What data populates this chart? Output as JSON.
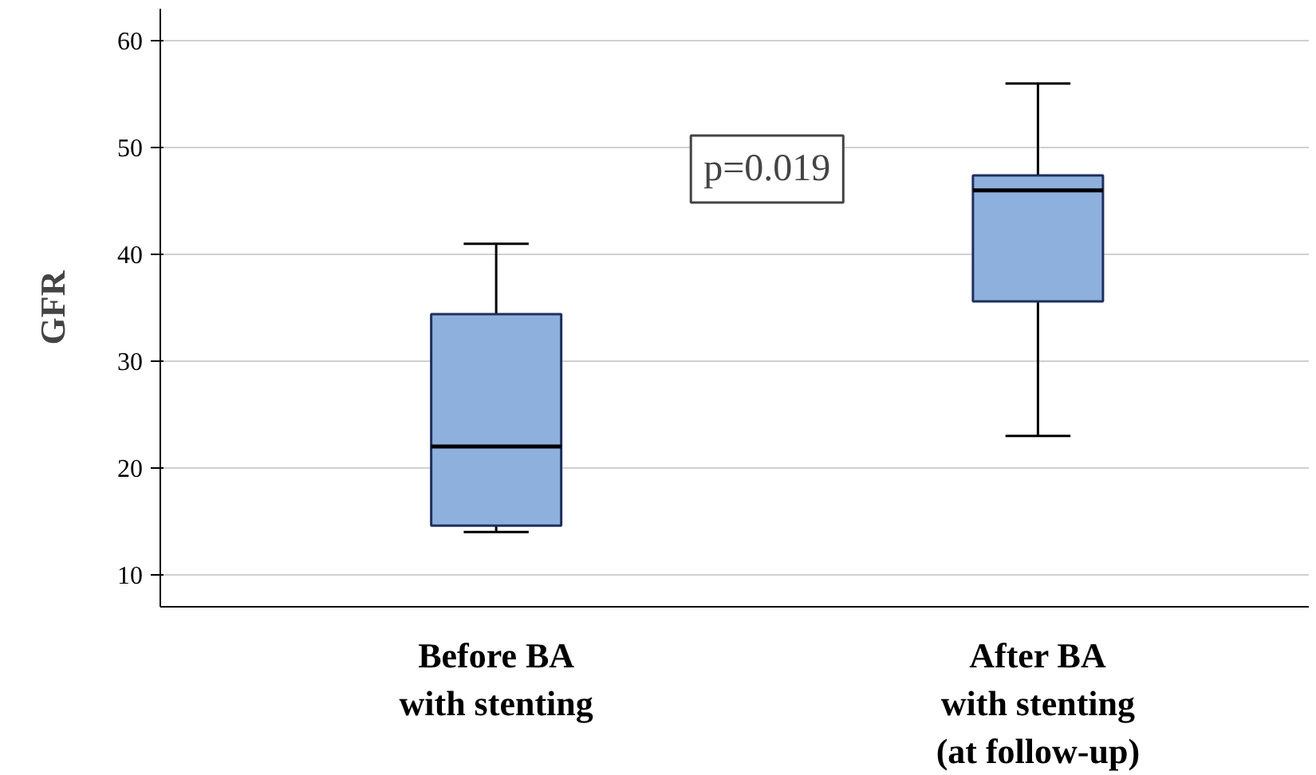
{
  "chart_data": {
    "type": "box",
    "ylabel": "GFR",
    "categories": [
      "Before BA\nwith stenting",
      "After BA\nwith stenting\n(at follow-up)"
    ],
    "boxes": [
      {
        "low": 14,
        "q1": 14.6,
        "median": 22,
        "q3": 34.4,
        "high": 41
      },
      {
        "low": 23,
        "q1": 35.6,
        "median": 46,
        "q3": 47.4,
        "high": 56
      }
    ],
    "color": "#8eb0dc",
    "ylim": [
      7,
      63
    ],
    "yticks": [
      10,
      20,
      30,
      40,
      50,
      60
    ],
    "grid": "y",
    "annotations": [
      "p=0.019"
    ]
  }
}
